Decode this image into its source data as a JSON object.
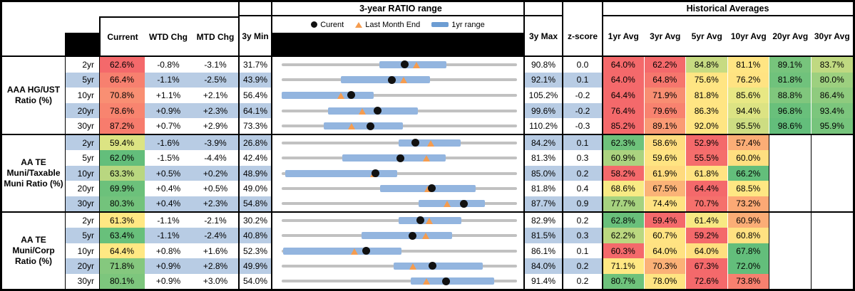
{
  "table": {
    "section_headers": {
      "ratio_range": "3-year RATIO range",
      "historical": "Historical Averages"
    },
    "legend": {
      "current": "Curent",
      "last_month": "Last Month End",
      "range": "1yr range"
    },
    "columns": {
      "current": "Current",
      "wtd": "WTD Chg",
      "mtd": "MTD Chg",
      "min3y": "3y Min",
      "max3y": "3y Max",
      "zscore": "z-score",
      "avg_headers": [
        "1yr Avg",
        "3yr Avg",
        "5yr Avg",
        "10yr Avg",
        "20yr Avg",
        "30yr Avg"
      ]
    },
    "colors": {
      "stripe": "#B8CCE4",
      "track": "#C1C1C1",
      "bar": "#93B5DF",
      "legend_bar": "#6D9DD3",
      "dot": "#111111",
      "triangle": "#F59C4F"
    },
    "groups": [
      {
        "label": "AAA HG/UST Ratio (%)",
        "rows": [
          {
            "tenor": "2yr",
            "current": "62.6%",
            "current_bg": "#F4696B",
            "wtd": "-0.8%",
            "mtd": "-3.1%",
            "min": "31.7%",
            "max": "90.8%",
            "z": "0.0",
            "striped": false,
            "range": {
              "min": 31.7,
              "max": 90.8,
              "cur": 62.6,
              "lme": 65.7,
              "lo": 56.2,
              "hi": 73.1
            },
            "avgs": [
              {
                "v": "64.0%",
                "bg": "#F4696B"
              },
              {
                "v": "62.2%",
                "bg": "#F4696B"
              },
              {
                "v": "84.8%",
                "bg": "#C7DB82"
              },
              {
                "v": "81.1%",
                "bg": "#FFE583"
              },
              {
                "v": "89.1%",
                "bg": "#77C47C"
              },
              {
                "v": "83.7%",
                "bg": "#C0D981"
              }
            ]
          },
          {
            "tenor": "5yr",
            "current": "66.4%",
            "current_bg": "#F7806F",
            "wtd": "-1.1%",
            "mtd": "-2.5%",
            "min": "43.9%",
            "max": "92.1%",
            "z": "0.1",
            "striped": true,
            "range": {
              "min": 43.9,
              "max": 92.1,
              "cur": 66.4,
              "lme": 68.9,
              "lo": 56.0,
              "hi": 74.3
            },
            "avgs": [
              {
                "v": "64.0%",
                "bg": "#F4696B"
              },
              {
                "v": "64.8%",
                "bg": "#F6766D"
              },
              {
                "v": "75.6%",
                "bg": "#FFE583"
              },
              {
                "v": "76.2%",
                "bg": "#FFE382"
              },
              {
                "v": "81.8%",
                "bg": "#70C27C"
              },
              {
                "v": "80.0%",
                "bg": "#9DD07F"
              }
            ]
          },
          {
            "tenor": "10yr",
            "current": "70.8%",
            "current_bg": "#F98F73",
            "wtd": "+1.1%",
            "mtd": "+2.1%",
            "min": "56.4%",
            "max": "105.2%",
            "z": "-0.2",
            "striped": false,
            "range": {
              "min": 56.4,
              "max": 105.2,
              "cur": 70.8,
              "lme": 68.7,
              "lo": 56.4,
              "hi": 75.4
            },
            "avgs": [
              {
                "v": "64.4%",
                "bg": "#F4696B"
              },
              {
                "v": "71.9%",
                "bg": "#F88E72"
              },
              {
                "v": "81.8%",
                "bg": "#FFE583"
              },
              {
                "v": "85.6%",
                "bg": "#E8E884"
              },
              {
                "v": "88.8%",
                "bg": "#80C77D"
              },
              {
                "v": "86.4%",
                "bg": "#8FCB7E"
              }
            ]
          },
          {
            "tenor": "20yr",
            "current": "78.6%",
            "current_bg": "#F8846F",
            "wtd": "+0.9%",
            "mtd": "+2.3%",
            "min": "64.1%",
            "max": "99.6%",
            "z": "-0.2",
            "striped": true,
            "range": {
              "min": 64.1,
              "max": 99.6,
              "cur": 78.6,
              "lme": 76.3,
              "lo": 71.1,
              "hi": 84.6
            },
            "avgs": [
              {
                "v": "76.4%",
                "bg": "#F4696B"
              },
              {
                "v": "79.6%",
                "bg": "#F8826F"
              },
              {
                "v": "86.3%",
                "bg": "#FFE583"
              },
              {
                "v": "94.4%",
                "bg": "#DCE383"
              },
              {
                "v": "96.8%",
                "bg": "#69C07B"
              },
              {
                "v": "93.4%",
                "bg": "#7CC67D"
              }
            ]
          },
          {
            "tenor": "30yr",
            "current": "87.2%",
            "current_bg": "#F77C6D",
            "wtd": "+0.7%",
            "mtd": "+2.9%",
            "min": "73.3%",
            "max": "110.2%",
            "z": "-0.3",
            "striped": false,
            "range": {
              "min": 73.3,
              "max": 110.2,
              "cur": 87.2,
              "lme": 84.3,
              "lo": 79.9,
              "hi": 92.3
            },
            "avgs": [
              {
                "v": "85.2%",
                "bg": "#F4696B"
              },
              {
                "v": "89.1%",
                "bg": "#FA9A74"
              },
              {
                "v": "92.0%",
                "bg": "#FFE583"
              },
              {
                "v": "95.5%",
                "bg": "#CDDD82"
              },
              {
                "v": "98.6%",
                "bg": "#63BE7B"
              },
              {
                "v": "95.9%",
                "bg": "#76C47C"
              }
            ]
          }
        ]
      },
      {
        "label": "AA TE Muni/Taxable Muni Ratio (%)",
        "rows": [
          {
            "tenor": "2yr",
            "current": "59.4%",
            "current_bg": "#DCE483",
            "wtd": "-1.6%",
            "mtd": "-3.9%",
            "min": "26.8%",
            "max": "84.2%",
            "z": "0.1",
            "striped": true,
            "range": {
              "min": 26.8,
              "max": 84.2,
              "cur": 59.4,
              "lme": 63.3,
              "lo": 55.3,
              "hi": 70.4
            },
            "avgs": [
              {
                "v": "62.3%",
                "bg": "#6EC27B"
              },
              {
                "v": "58.6%",
                "bg": "#FFDC7F"
              },
              {
                "v": "52.9%",
                "bg": "#F4696B"
              },
              {
                "v": "57.4%",
                "bg": "#FBAD76"
              },
              {
                "v": "",
                "bg": ""
              },
              {
                "v": "",
                "bg": ""
              }
            ]
          },
          {
            "tenor": "5yr",
            "current": "62.0%",
            "current_bg": "#63BE7B",
            "wtd": "-1.5%",
            "mtd": "-4.4%",
            "min": "42.4%",
            "max": "81.3%",
            "z": "0.3",
            "striped": false,
            "range": {
              "min": 42.4,
              "max": 81.3,
              "cur": 62.0,
              "lme": 66.4,
              "lo": 52.4,
              "hi": 69.5
            },
            "avgs": [
              {
                "v": "60.9%",
                "bg": "#ABD37F"
              },
              {
                "v": "59.6%",
                "bg": "#FFE482"
              },
              {
                "v": "55.5%",
                "bg": "#F56E6C"
              },
              {
                "v": "60.0%",
                "bg": "#FFDF80"
              },
              {
                "v": "",
                "bg": ""
              },
              {
                "v": "",
                "bg": ""
              }
            ]
          },
          {
            "tenor": "10yr",
            "current": "63.3%",
            "current_bg": "#B9D780",
            "wtd": "+0.5%",
            "mtd": "+0.2%",
            "min": "48.9%",
            "max": "85.0%",
            "z": "0.2",
            "striped": true,
            "range": {
              "min": 48.9,
              "max": 85.0,
              "cur": 63.3,
              "lme": 63.1,
              "lo": 49.4,
              "hi": 66.6
            },
            "avgs": [
              {
                "v": "58.2%",
                "bg": "#F4696B"
              },
              {
                "v": "61.9%",
                "bg": "#FFDA7E"
              },
              {
                "v": "61.8%",
                "bg": "#FFE382"
              },
              {
                "v": "66.2%",
                "bg": "#63BE7B"
              },
              {
                "v": "",
                "bg": ""
              },
              {
                "v": "",
                "bg": ""
              }
            ]
          },
          {
            "tenor": "20yr",
            "current": "69.9%",
            "current_bg": "#6CC17B",
            "wtd": "+0.4%",
            "mtd": "+0.5%",
            "min": "49.0%",
            "max": "81.8%",
            "z": "0.4",
            "striped": false,
            "range": {
              "min": 49.0,
              "max": 81.8,
              "cur": 69.9,
              "lme": 69.4,
              "lo": 62.7,
              "hi": 76.0
            },
            "avgs": [
              {
                "v": "68.6%",
                "bg": "#F8EA84"
              },
              {
                "v": "67.5%",
                "bg": "#FBB377"
              },
              {
                "v": "64.4%",
                "bg": "#F4696B"
              },
              {
                "v": "68.5%",
                "bg": "#FFE783"
              },
              {
                "v": "",
                "bg": ""
              },
              {
                "v": "",
                "bg": ""
              }
            ]
          },
          {
            "tenor": "30yr",
            "current": "80.3%",
            "current_bg": "#73C37C",
            "wtd": "+0.4%",
            "mtd": "+2.3%",
            "min": "54.8%",
            "max": "87.7%",
            "z": "0.9",
            "striped": true,
            "range": {
              "min": 54.8,
              "max": 87.7,
              "cur": 80.3,
              "lme": 78.0,
              "lo": 73.9,
              "hi": 83.2
            },
            "avgs": [
              {
                "v": "77.7%",
                "bg": "#A6D27F"
              },
              {
                "v": "74.4%",
                "bg": "#FFE282"
              },
              {
                "v": "70.7%",
                "bg": "#F5706C"
              },
              {
                "v": "73.2%",
                "bg": "#FCA975"
              },
              {
                "v": "",
                "bg": ""
              },
              {
                "v": "",
                "bg": ""
              }
            ]
          }
        ]
      },
      {
        "label": "AA TE Muni/Corp Ratio (%)",
        "rows": [
          {
            "tenor": "2yr",
            "current": "61.3%",
            "current_bg": "#FFE883",
            "wtd": "-1.1%",
            "mtd": "-2.1%",
            "min": "30.2%",
            "max": "82.9%",
            "z": "0.2",
            "striped": false,
            "range": {
              "min": 30.2,
              "max": 82.9,
              "cur": 61.3,
              "lme": 63.4,
              "lo": 56.4,
              "hi": 70.5
            },
            "avgs": [
              {
                "v": "62.8%",
                "bg": "#69C07B"
              },
              {
                "v": "59.4%",
                "bg": "#F4696B"
              },
              {
                "v": "61.4%",
                "bg": "#F8E983"
              },
              {
                "v": "60.9%",
                "bg": "#FBAD76"
              },
              {
                "v": "",
                "bg": ""
              },
              {
                "v": "",
                "bg": ""
              }
            ]
          },
          {
            "tenor": "5yr",
            "current": "63.4%",
            "current_bg": "#68C07B",
            "wtd": "-1.1%",
            "mtd": "-2.4%",
            "min": "40.8%",
            "max": "81.5%",
            "z": "0.3",
            "striped": true,
            "range": {
              "min": 40.8,
              "max": 81.5,
              "cur": 63.4,
              "lme": 65.8,
              "lo": 54.6,
              "hi": 70.3
            },
            "avgs": [
              {
                "v": "62.2%",
                "bg": "#BBD880"
              },
              {
                "v": "60.7%",
                "bg": "#FFE382"
              },
              {
                "v": "59.2%",
                "bg": "#F4696B"
              },
              {
                "v": "60.8%",
                "bg": "#FFE181"
              },
              {
                "v": "",
                "bg": ""
              },
              {
                "v": "",
                "bg": ""
              }
            ]
          },
          {
            "tenor": "10yr",
            "current": "64.4%",
            "current_bg": "#FFE883",
            "wtd": "+0.8%",
            "mtd": "+1.6%",
            "min": "52.3%",
            "max": "86.1%",
            "z": "0.1",
            "striped": false,
            "range": {
              "min": 52.3,
              "max": 86.1,
              "cur": 64.4,
              "lme": 62.8,
              "lo": 52.5,
              "hi": 69.5
            },
            "avgs": [
              {
                "v": "60.3%",
                "bg": "#F4696B"
              },
              {
                "v": "64.0%",
                "bg": "#FFE282"
              },
              {
                "v": "64.0%",
                "bg": "#FFDF7F"
              },
              {
                "v": "67.8%",
                "bg": "#63BE7B"
              },
              {
                "v": "",
                "bg": ""
              },
              {
                "v": "",
                "bg": ""
              }
            ]
          },
          {
            "tenor": "20yr",
            "current": "71.8%",
            "current_bg": "#85C87E",
            "wtd": "+0.9%",
            "mtd": "+2.8%",
            "min": "49.9%",
            "max": "84.0%",
            "z": "0.2",
            "striped": true,
            "range": {
              "min": 49.9,
              "max": 84.0,
              "cur": 71.8,
              "lme": 69.0,
              "lo": 66.1,
              "hi": 79.0
            },
            "avgs": [
              {
                "v": "71.1%",
                "bg": "#FFE883"
              },
              {
                "v": "70.3%",
                "bg": "#FBB177"
              },
              {
                "v": "67.3%",
                "bg": "#F4696B"
              },
              {
                "v": "72.0%",
                "bg": "#63BE7B"
              },
              {
                "v": "",
                "bg": ""
              },
              {
                "v": "",
                "bg": ""
              }
            ]
          },
          {
            "tenor": "30yr",
            "current": "80.1%",
            "current_bg": "#7DC67D",
            "wtd": "+0.9%",
            "mtd": "+3.0%",
            "min": "54.0%",
            "max": "91.4%",
            "z": "0.2",
            "striped": false,
            "range": {
              "min": 54.0,
              "max": 91.4,
              "cur": 80.1,
              "lme": 77.1,
              "lo": 74.5,
              "hi": 87.8
            },
            "avgs": [
              {
                "v": "80.7%",
                "bg": "#6EC27B"
              },
              {
                "v": "78.0%",
                "bg": "#FFE482"
              },
              {
                "v": "72.6%",
                "bg": "#F4696B"
              },
              {
                "v": "73.8%",
                "bg": "#F7806F"
              },
              {
                "v": "",
                "bg": ""
              },
              {
                "v": "",
                "bg": ""
              }
            ]
          }
        ]
      }
    ]
  }
}
